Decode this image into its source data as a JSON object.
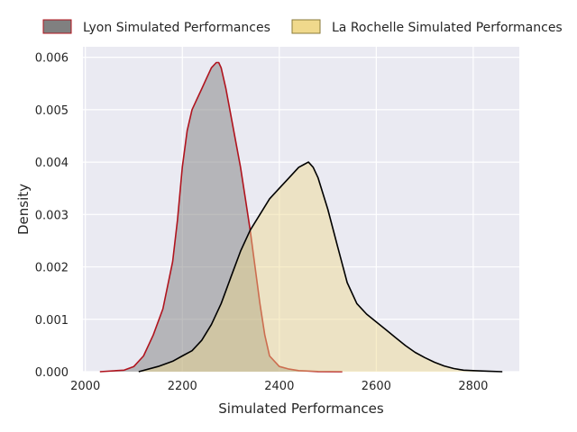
{
  "chart_data": {
    "type": "area",
    "title": "",
    "xlabel": "Simulated Performances",
    "ylabel": "Density",
    "xlim": [
      1995,
      2895
    ],
    "ylim": [
      0,
      0.0062
    ],
    "xticks": [
      2000,
      2200,
      2400,
      2600,
      2800
    ],
    "yticks": [
      0.0,
      0.001,
      0.002,
      0.003,
      0.004,
      0.005,
      0.006
    ],
    "ytick_labels": [
      "0.000",
      "0.001",
      "0.002",
      "0.003",
      "0.004",
      "0.005",
      "0.006"
    ],
    "grid": true,
    "legend_position": "top",
    "series": [
      {
        "name": "Lyon Simulated Performances",
        "fill": "#808080",
        "fill_opacity": 0.5,
        "line": "#b0141e",
        "x": [
          2030,
          2080,
          2100,
          2120,
          2140,
          2160,
          2180,
          2190,
          2200,
          2210,
          2220,
          2230,
          2240,
          2250,
          2260,
          2270,
          2275,
          2280,
          2290,
          2300,
          2310,
          2320,
          2330,
          2340,
          2350,
          2360,
          2370,
          2380,
          2400,
          2420,
          2440,
          2480,
          2530
        ],
        "y": [
          0,
          3e-05,
          0.0001,
          0.0003,
          0.0007,
          0.0012,
          0.0021,
          0.0029,
          0.0039,
          0.0046,
          0.005,
          0.0052,
          0.0054,
          0.0056,
          0.0058,
          0.0059,
          0.0059,
          0.0058,
          0.0054,
          0.0049,
          0.0044,
          0.0039,
          0.0033,
          0.0027,
          0.002,
          0.0013,
          0.0007,
          0.0003,
          0.0001,
          5e-05,
          2e-05,
          3e-06,
          0
        ]
      },
      {
        "name": "La Rochelle Simulated Performances",
        "fill": "#f0d98c",
        "fill_opacity": 0.45,
        "line": "#000000",
        "x": [
          2110,
          2150,
          2180,
          2200,
          2220,
          2240,
          2260,
          2280,
          2300,
          2320,
          2340,
          2360,
          2380,
          2400,
          2420,
          2440,
          2450,
          2460,
          2470,
          2480,
          2500,
          2520,
          2540,
          2560,
          2580,
          2600,
          2620,
          2640,
          2660,
          2680,
          2700,
          2720,
          2740,
          2760,
          2780,
          2800,
          2830,
          2860
        ],
        "y": [
          0,
          0.0001,
          0.0002,
          0.0003,
          0.0004,
          0.0006,
          0.0009,
          0.0013,
          0.0018,
          0.0023,
          0.0027,
          0.003,
          0.0033,
          0.0035,
          0.0037,
          0.0039,
          0.00395,
          0.004,
          0.0039,
          0.0037,
          0.0031,
          0.0024,
          0.0017,
          0.0013,
          0.0011,
          0.00095,
          0.0008,
          0.00065,
          0.0005,
          0.00037,
          0.00027,
          0.00018,
          0.00011,
          6e-05,
          3e-05,
          2e-05,
          1e-05,
          0
        ]
      }
    ]
  }
}
